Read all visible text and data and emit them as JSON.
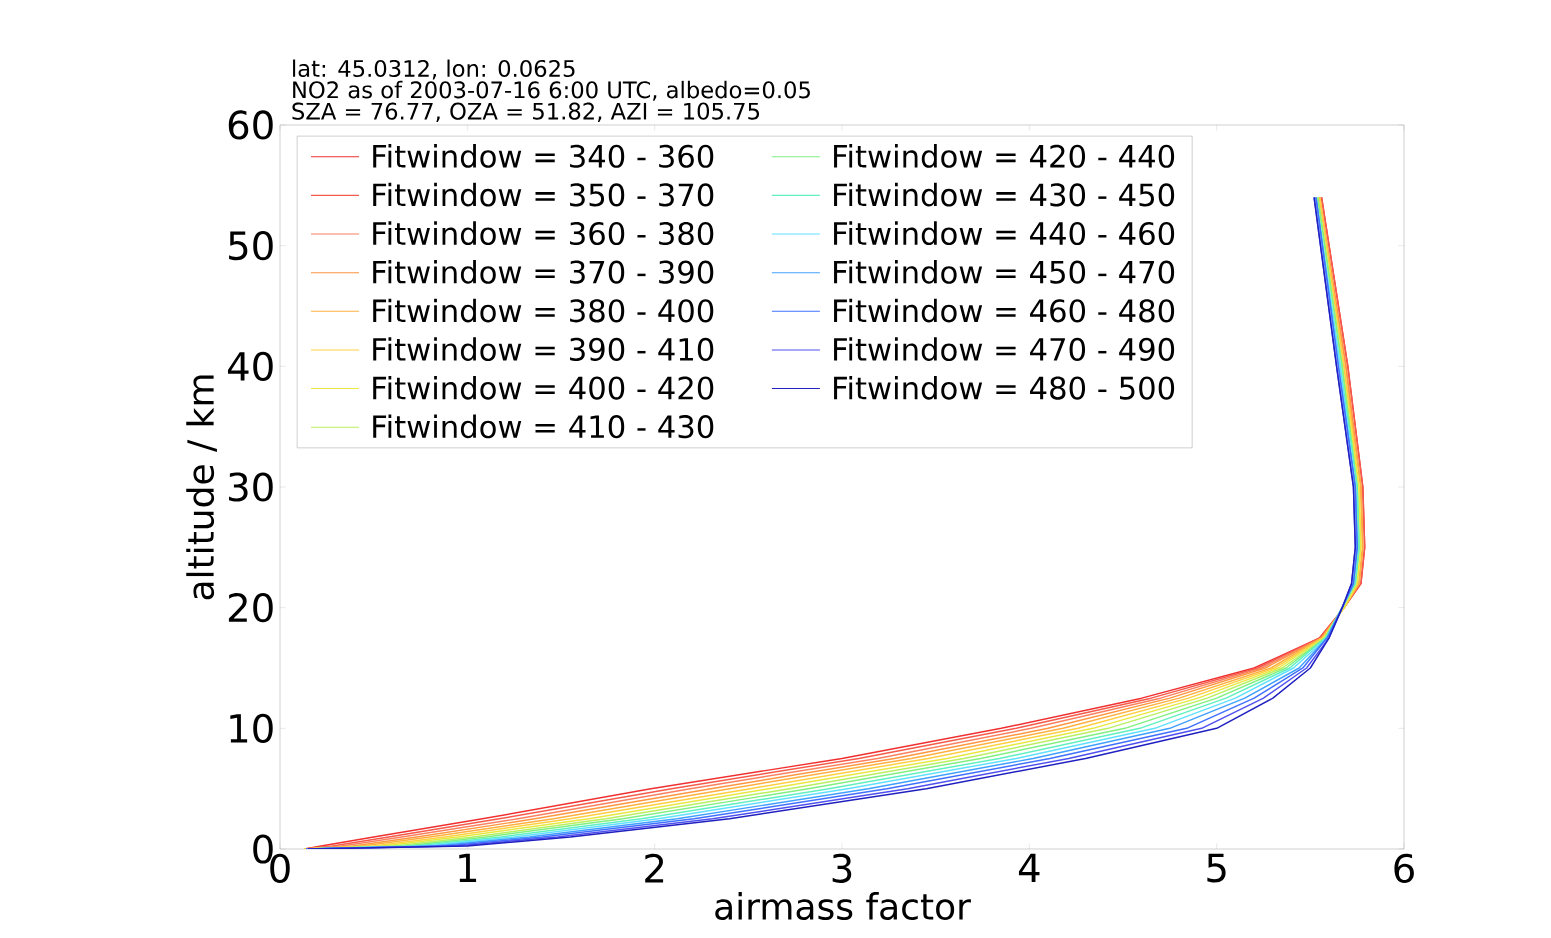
{
  "chart_data": {
    "type": "line",
    "annotations": [
      "lat: 45.0312, lon: 0.0625",
      "NO2 as of 2003-07-16 6:00 UTC, albedo=0.05",
      "SZA = 76.77, OZA = 51.82, AZI = 105.75"
    ],
    "xlabel": "airmass factor",
    "ylabel": "altitude / km",
    "xlim": [
      0,
      6
    ],
    "ylim": [
      0,
      60
    ],
    "xticks": [
      0,
      1,
      2,
      3,
      4,
      5,
      6
    ],
    "yticks": [
      0,
      10,
      20,
      30,
      40,
      50,
      60
    ],
    "legend": "top left",
    "marker": "none",
    "line_style": "solid",
    "grid": false,
    "series": [
      {
        "name": "Fitwindow = 340 - 360",
        "color": "#f03030",
        "x": [
          0.13,
          0.22,
          0.5,
          1.08,
          1.98,
          3.0,
          3.85,
          4.6,
          5.2,
          5.55,
          5.68,
          5.77,
          5.79,
          5.78,
          5.7,
          5.56
        ],
        "values": [
          0,
          0.25,
          1,
          2.5,
          5,
          7.5,
          10,
          12.5,
          15,
          17.5,
          20,
          22,
          25,
          30,
          40,
          54
        ]
      },
      {
        "name": "Fitwindow = 350 - 370",
        "color": "#f55a4a",
        "x": [
          0.13,
          0.28,
          0.58,
          1.17,
          2.09,
          3.09,
          3.93,
          4.65,
          5.22,
          5.55,
          5.68,
          5.77,
          5.79,
          5.78,
          5.7,
          5.56
        ],
        "values": [
          0,
          0.25,
          1,
          2.5,
          5,
          7.5,
          10,
          12.5,
          15,
          17.5,
          20,
          22,
          25,
          30,
          40,
          54
        ]
      },
      {
        "name": "Fitwindow = 360 - 380",
        "color": "#fa8060",
        "x": [
          0.13,
          0.33,
          0.65,
          1.27,
          2.19,
          3.19,
          4.01,
          4.7,
          5.24,
          5.56,
          5.68,
          5.76,
          5.78,
          5.77,
          5.69,
          5.55
        ],
        "values": [
          0,
          0.25,
          1,
          2.5,
          5,
          7.5,
          10,
          12.5,
          15,
          17.5,
          20,
          22,
          25,
          30,
          40,
          54
        ]
      },
      {
        "name": "Fitwindow = 370 - 390",
        "color": "#ff9640",
        "x": [
          0.13,
          0.39,
          0.73,
          1.36,
          2.3,
          3.28,
          4.1,
          4.75,
          5.26,
          5.56,
          5.68,
          5.76,
          5.78,
          5.77,
          5.69,
          5.55
        ],
        "values": [
          0,
          0.25,
          1,
          2.5,
          5,
          7.5,
          10,
          12.5,
          15,
          17.5,
          20,
          22,
          25,
          30,
          40,
          54
        ]
      },
      {
        "name": "Fitwindow = 380 - 400",
        "color": "#ffb040",
        "x": [
          0.13,
          0.44,
          0.8,
          1.46,
          2.4,
          3.37,
          4.18,
          4.8,
          5.29,
          5.56,
          5.68,
          5.76,
          5.78,
          5.77,
          5.68,
          5.55
        ],
        "values": [
          0,
          0.25,
          1,
          2.5,
          5,
          7.5,
          10,
          12.5,
          15,
          17.5,
          20,
          22,
          25,
          30,
          40,
          54
        ]
      },
      {
        "name": "Fitwindow = 390 - 410",
        "color": "#ffcf40",
        "x": [
          0.13,
          0.5,
          0.88,
          1.55,
          2.51,
          3.46,
          4.26,
          4.85,
          5.31,
          5.57,
          5.68,
          5.75,
          5.77,
          5.76,
          5.68,
          5.55
        ],
        "values": [
          0,
          0.25,
          1,
          2.5,
          5,
          7.5,
          10,
          12.5,
          15,
          17.5,
          20,
          22,
          25,
          30,
          40,
          54
        ]
      },
      {
        "name": "Fitwindow = 400 - 420",
        "color": "#e8e840",
        "x": [
          0.13,
          0.55,
          0.95,
          1.65,
          2.61,
          3.56,
          4.34,
          4.9,
          5.33,
          5.57,
          5.68,
          5.75,
          5.77,
          5.76,
          5.67,
          5.54
        ],
        "values": [
          0,
          0.25,
          1,
          2.5,
          5,
          7.5,
          10,
          12.5,
          15,
          17.5,
          20,
          22,
          25,
          30,
          40,
          54
        ]
      },
      {
        "name": "Fitwindow = 410 - 430",
        "color": "#b8f060",
        "x": [
          0.14,
          0.61,
          1.03,
          1.74,
          2.72,
          3.65,
          4.42,
          4.95,
          5.35,
          5.58,
          5.67,
          5.74,
          5.76,
          5.75,
          5.67,
          5.54
        ],
        "values": [
          0,
          0.25,
          1,
          2.5,
          5,
          7.5,
          10,
          12.5,
          15,
          17.5,
          20,
          22,
          25,
          30,
          40,
          54
        ]
      },
      {
        "name": "Fitwindow = 420 - 440",
        "color": "#80f080",
        "x": [
          0.14,
          0.67,
          1.1,
          1.83,
          2.82,
          3.74,
          4.51,
          5.0,
          5.37,
          5.58,
          5.67,
          5.74,
          5.76,
          5.75,
          5.67,
          5.54
        ],
        "values": [
          0,
          0.25,
          1,
          2.5,
          5,
          7.5,
          10,
          12.5,
          15,
          17.5,
          20,
          22,
          25,
          30,
          40,
          54
        ]
      },
      {
        "name": "Fitwindow = 430 - 450",
        "color": "#60f0c0",
        "x": [
          0.14,
          0.72,
          1.18,
          1.93,
          2.93,
          3.84,
          4.59,
          5.05,
          5.39,
          5.58,
          5.67,
          5.74,
          5.76,
          5.75,
          5.66,
          5.53
        ],
        "values": [
          0,
          0.25,
          1,
          2.5,
          5,
          7.5,
          10,
          12.5,
          15,
          17.5,
          20,
          22,
          25,
          30,
          40,
          54
        ]
      },
      {
        "name": "Fitwindow = 440 - 460",
        "color": "#60e0ff",
        "x": [
          0.14,
          0.78,
          1.25,
          2.02,
          3.03,
          3.93,
          4.67,
          5.1,
          5.41,
          5.59,
          5.67,
          5.73,
          5.75,
          5.74,
          5.66,
          5.53
        ],
        "values": [
          0,
          0.25,
          1,
          2.5,
          5,
          7.5,
          10,
          12.5,
          15,
          17.5,
          20,
          22,
          25,
          30,
          40,
          54
        ]
      },
      {
        "name": "Fitwindow = 450 - 470",
        "color": "#40a0ff",
        "x": [
          0.14,
          0.83,
          1.33,
          2.12,
          3.14,
          4.02,
          4.75,
          5.15,
          5.44,
          5.59,
          5.67,
          5.73,
          5.75,
          5.74,
          5.65,
          5.53
        ],
        "values": [
          0,
          0.25,
          1,
          2.5,
          5,
          7.5,
          10,
          12.5,
          15,
          17.5,
          20,
          22,
          25,
          30,
          40,
          54
        ]
      },
      {
        "name": "Fitwindow = 460 - 480",
        "color": "#4070ff",
        "x": [
          0.14,
          0.89,
          1.4,
          2.21,
          3.24,
          4.11,
          4.84,
          5.2,
          5.46,
          5.59,
          5.67,
          5.73,
          5.75,
          5.74,
          5.65,
          5.53
        ],
        "values": [
          0,
          0.25,
          1,
          2.5,
          5,
          7.5,
          10,
          12.5,
          15,
          17.5,
          20,
          22,
          25,
          30,
          40,
          54
        ]
      },
      {
        "name": "Fitwindow = 470 - 490",
        "color": "#5050f0",
        "x": [
          0.14,
          0.94,
          1.48,
          2.31,
          3.35,
          4.21,
          4.92,
          5.25,
          5.48,
          5.6,
          5.67,
          5.72,
          5.74,
          5.73,
          5.64,
          5.52
        ],
        "values": [
          0,
          0.25,
          1,
          2.5,
          5,
          7.5,
          10,
          12.5,
          15,
          17.5,
          20,
          22,
          25,
          30,
          40,
          54
        ]
      },
      {
        "name": "Fitwindow = 480 - 500",
        "color": "#2020c0",
        "x": [
          0.15,
          1.0,
          1.55,
          2.4,
          3.45,
          4.3,
          5.0,
          5.3,
          5.5,
          5.6,
          5.67,
          5.72,
          5.74,
          5.73,
          5.64,
          5.52
        ],
        "values": [
          0,
          0.25,
          1,
          2.5,
          5,
          7.5,
          10,
          12.5,
          15,
          17.5,
          20,
          22,
          25,
          30,
          40,
          54
        ]
      }
    ]
  }
}
